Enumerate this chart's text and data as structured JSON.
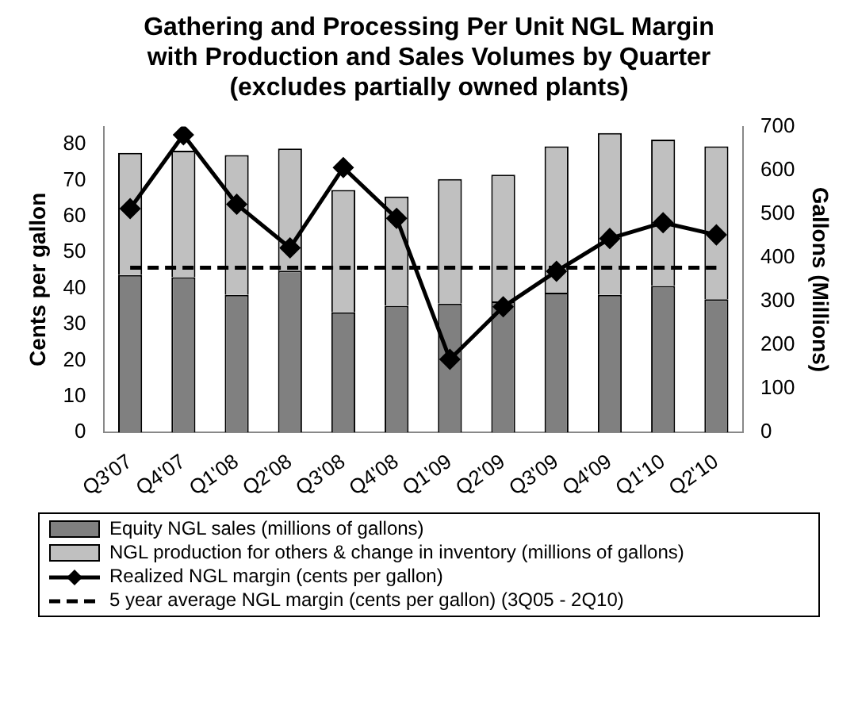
{
  "chart_data": {
    "type": "bar",
    "title": "Gathering and Processing Per Unit NGL Margin with Production and Sales Volumes by Quarter (excludes partially owned plants)",
    "categories": [
      "Q3'07",
      "Q4'07",
      "Q1'08",
      "Q2'08",
      "Q3'08",
      "Q4'08",
      "Q1'09",
      "Q2'09",
      "Q3'09",
      "Q4'09",
      "Q1'10",
      "Q2'10"
    ],
    "stacked": true,
    "series": [
      {
        "name": "Equity NGL sales (millions of gallons)",
        "axis": "y2",
        "color": "#808080",
        "values": [
          360,
          355,
          315,
          370,
          275,
          290,
          295,
          300,
          320,
          315,
          335,
          305
        ]
      },
      {
        "name": "NGL production for others & change in inventory (millions of gallons)",
        "axis": "y2",
        "color": "#c0c0c0",
        "values": [
          280,
          290,
          320,
          280,
          280,
          250,
          285,
          290,
          335,
          370,
          335,
          350
        ]
      },
      {
        "name": "Realized NGL margin (cents per gallon)",
        "type": "line",
        "color": "#000000",
        "marker": "diamond",
        "line_style": "solid",
        "values": [
          62.2,
          82.7,
          63.4,
          51.3,
          73.6,
          59.5,
          20.3,
          34.9,
          44.8,
          53.9,
          58.3,
          54.9
        ]
      },
      {
        "name": "5 year average NGL margin (cents per gallon) (3Q05 - 2Q10)",
        "type": "line",
        "color": "#000000",
        "marker": "none",
        "line_style": "dashed",
        "values": [
          45.8,
          45.8,
          45.8,
          45.8,
          45.8,
          45.8,
          45.8,
          45.8,
          45.8,
          45.8,
          45.8,
          45.8
        ]
      }
    ],
    "ylabel": "Cents per gallon",
    "y2label": "Gallons (Millions)",
    "ylim": [
      0,
      85
    ],
    "yticks": [
      0,
      10,
      20,
      30,
      40,
      50,
      60,
      70,
      80
    ],
    "y2lim": [
      0,
      700
    ],
    "y2ticks": [
      0,
      100,
      200,
      300,
      400,
      500,
      600,
      700
    ],
    "grid": false,
    "legend": "bottom"
  }
}
